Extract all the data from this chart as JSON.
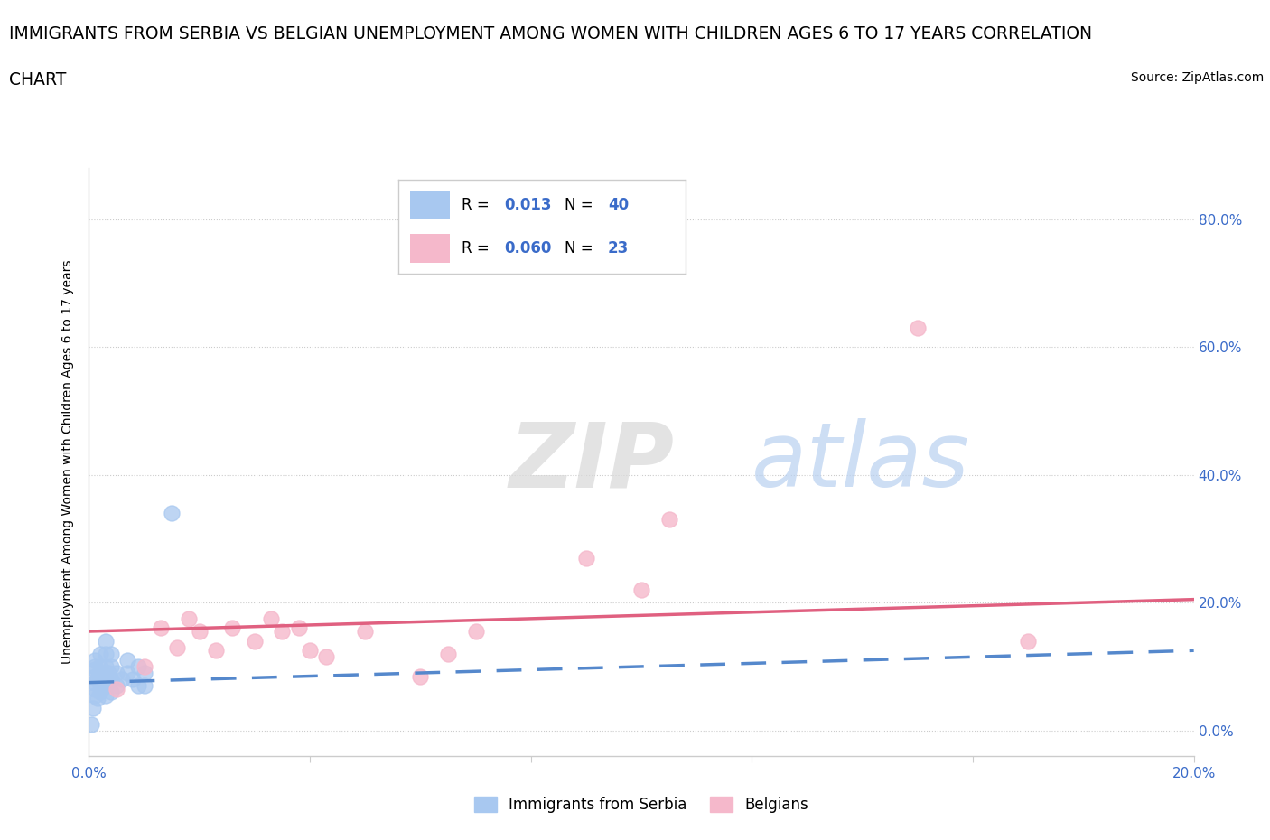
{
  "title_line1": "IMMIGRANTS FROM SERBIA VS BELGIAN UNEMPLOYMENT AMONG WOMEN WITH CHILDREN AGES 6 TO 17 YEARS CORRELATION",
  "title_line2": "CHART",
  "source_text": "Source: ZipAtlas.com",
  "ylabel": "Unemployment Among Women with Children Ages 6 to 17 years",
  "watermark_ZIP": "ZIP",
  "watermark_atlas": "atlas",
  "xlim": [
    0.0,
    0.2
  ],
  "ylim": [
    -0.04,
    0.88
  ],
  "ytick_labels_right": [
    "0.0%",
    "20.0%",
    "40.0%",
    "60.0%",
    "80.0%"
  ],
  "ytick_positions": [
    0.0,
    0.2,
    0.4,
    0.6,
    0.8
  ],
  "legend_blue_R": "0.013",
  "legend_blue_N": "40",
  "legend_pink_R": "0.060",
  "legend_pink_N": "23",
  "legend_label_blue": "Immigrants from Serbia",
  "legend_label_pink": "Belgians",
  "blue_color": "#a8c8f0",
  "pink_color": "#f5b8cb",
  "trend_blue_color": "#5588cc",
  "trend_pink_color": "#e06080",
  "blue_scatter_x": [
    0.0005,
    0.0008,
    0.001,
    0.001,
    0.001,
    0.001,
    0.001,
    0.001,
    0.001,
    0.0015,
    0.0015,
    0.002,
    0.002,
    0.002,
    0.002,
    0.002,
    0.002,
    0.0025,
    0.003,
    0.003,
    0.003,
    0.003,
    0.003,
    0.003,
    0.0035,
    0.004,
    0.004,
    0.004,
    0.004,
    0.005,
    0.005,
    0.006,
    0.007,
    0.007,
    0.008,
    0.009,
    0.009,
    0.01,
    0.01,
    0.015
  ],
  "blue_scatter_y": [
    0.01,
    0.035,
    0.055,
    0.065,
    0.075,
    0.085,
    0.095,
    0.1,
    0.11,
    0.05,
    0.08,
    0.06,
    0.07,
    0.08,
    0.09,
    0.1,
    0.12,
    0.07,
    0.055,
    0.07,
    0.08,
    0.1,
    0.12,
    0.14,
    0.09,
    0.06,
    0.08,
    0.1,
    0.12,
    0.07,
    0.09,
    0.08,
    0.09,
    0.11,
    0.08,
    0.07,
    0.1,
    0.07,
    0.09,
    0.34
  ],
  "pink_scatter_x": [
    0.005,
    0.01,
    0.013,
    0.016,
    0.018,
    0.02,
    0.023,
    0.026,
    0.03,
    0.033,
    0.035,
    0.038,
    0.04,
    0.043,
    0.05,
    0.06,
    0.065,
    0.07,
    0.09,
    0.1,
    0.105,
    0.15,
    0.17
  ],
  "pink_scatter_y": [
    0.065,
    0.1,
    0.16,
    0.13,
    0.175,
    0.155,
    0.125,
    0.16,
    0.14,
    0.175,
    0.155,
    0.16,
    0.125,
    0.115,
    0.155,
    0.085,
    0.12,
    0.155,
    0.27,
    0.22,
    0.33,
    0.63,
    0.14
  ],
  "blue_trend_x": [
    0.0,
    0.2
  ],
  "blue_trend_y": [
    0.075,
    0.125
  ],
  "pink_trend_x": [
    0.0,
    0.2
  ],
  "pink_trend_y": [
    0.155,
    0.205
  ],
  "grid_color": "#cccccc",
  "background_color": "#ffffff",
  "title_fontsize": 13.5,
  "tick_fontsize": 11,
  "legend_color": "#3a6bc9"
}
